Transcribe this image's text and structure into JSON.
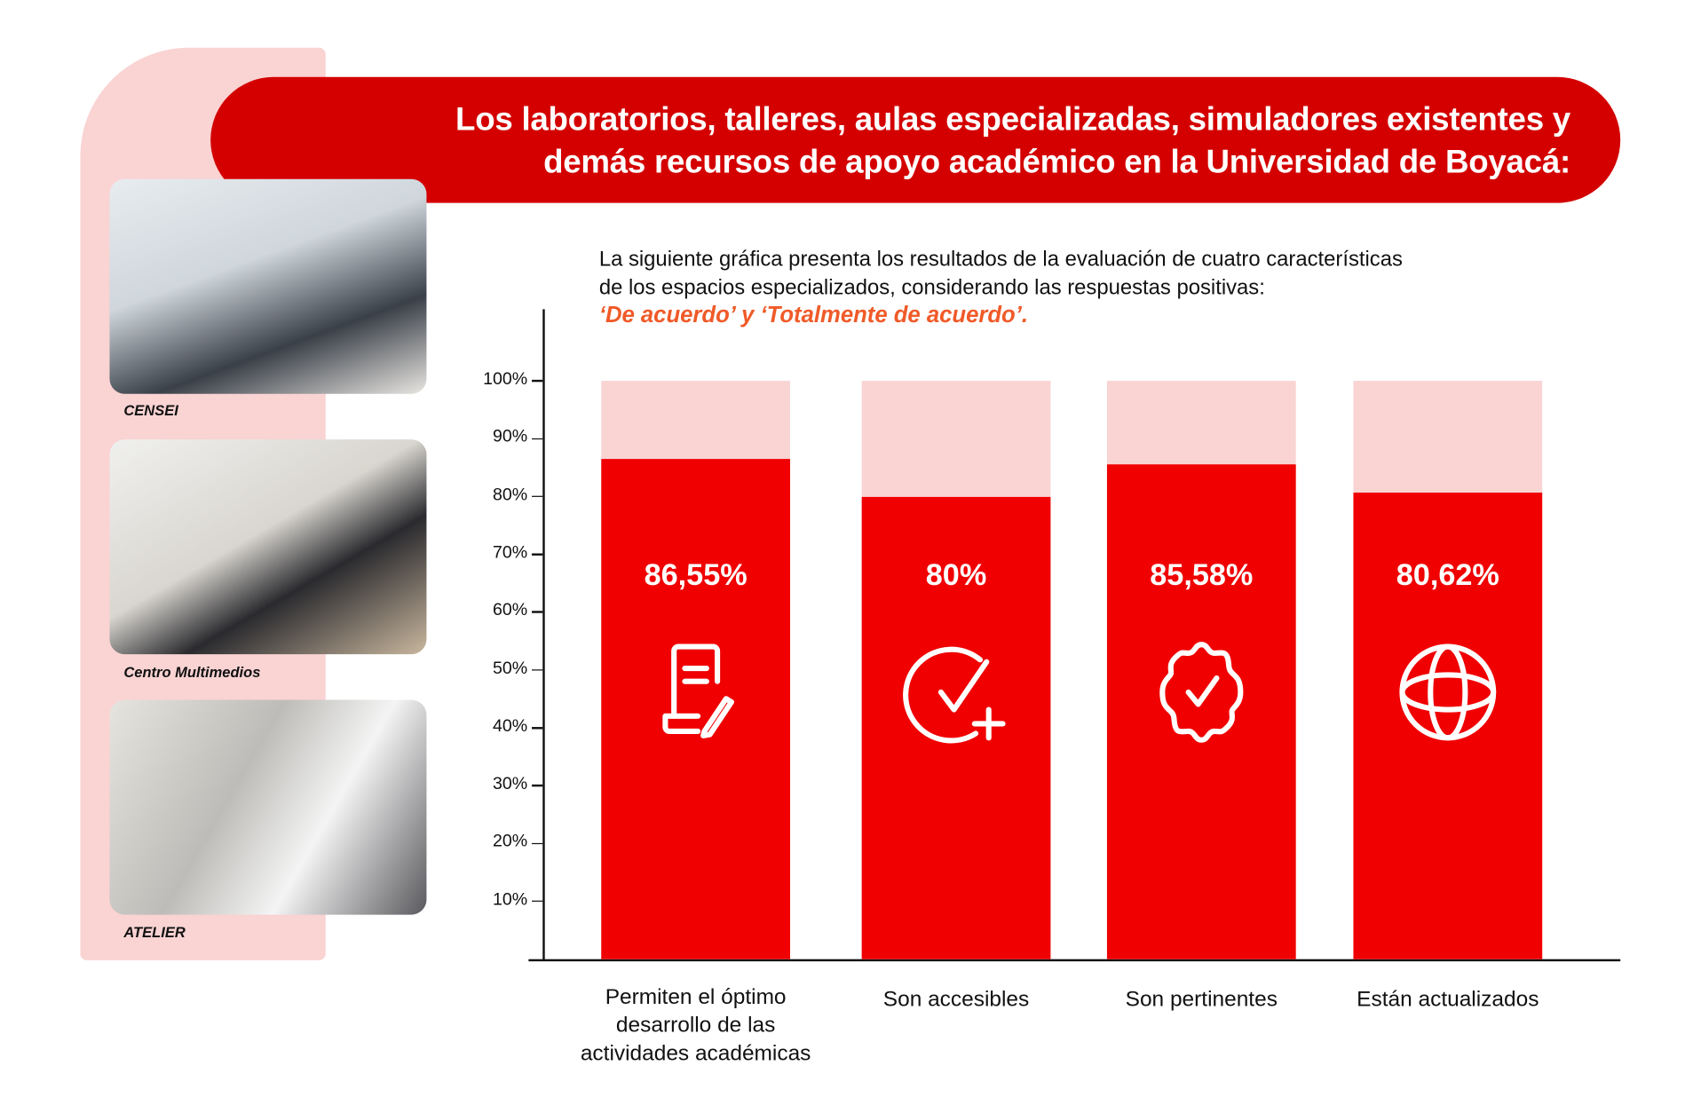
{
  "banner": {
    "title_line1": "Los laboratorios, talleres, aulas especializadas, simuladores existentes y",
    "title_line2": "demás recursos de apoyo académico en la Universidad de Boyacá:"
  },
  "photos": [
    {
      "caption": "CENSEI"
    },
    {
      "caption": "Centro Multimedios"
    },
    {
      "caption": "ATELIER"
    }
  ],
  "intro": {
    "line1": "La siguiente gráfica presenta los resultados de la evaluación de cuatro características",
    "line2": "de los espacios especializados, considerando las respuestas positivas:",
    "emphasis": "‘De acuerdo’ y ‘Totalmente de acuerdo’."
  },
  "colors": {
    "bar": "#f00000",
    "bar_background": "#fad3d3",
    "banner": "#d40000",
    "emphasis": "#f05a28"
  },
  "chart_data": {
    "type": "bar",
    "stacked_background_to": 100,
    "categories": [
      "Permiten el óptimo desarrollo de las actividades académicas",
      "Son accesibles",
      "Son pertinentes",
      "Están actualizados"
    ],
    "category_lines": [
      [
        "Permiten el óptimo",
        "desarrollo de las",
        "actividades académicas"
      ],
      [
        "Son accesibles"
      ],
      [
        "Son pertinentes"
      ],
      [
        "Están actualizados"
      ]
    ],
    "values": [
      86.55,
      80,
      85.58,
      80.62
    ],
    "value_labels": [
      "86,55%",
      "80%",
      "85,58%",
      "80,62%"
    ],
    "icons": [
      "document-edit-icon",
      "check-plus-icon",
      "badge-check-icon",
      "globe-icon"
    ],
    "ylim": [
      0,
      100
    ],
    "yticks": [
      10,
      20,
      30,
      40,
      50,
      60,
      70,
      80,
      90,
      100
    ],
    "ytick_labels": [
      "10%",
      "20%",
      "30%",
      "40%",
      "50%",
      "60%",
      "70%",
      "80%",
      "90%",
      "100%"
    ],
    "grid": false,
    "legend": "none"
  }
}
